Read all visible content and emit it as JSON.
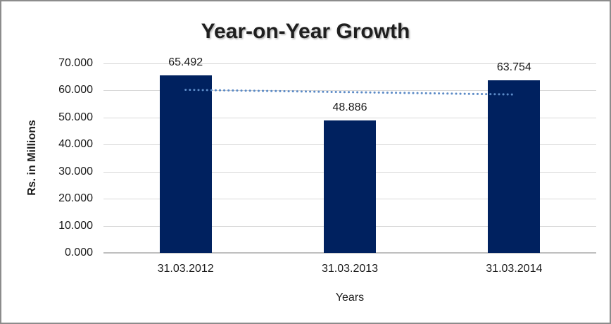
{
  "chart_data": {
    "type": "bar",
    "title": "Year-on-Year Growth",
    "xlabel": "Years",
    "ylabel": "Rs. in Millions",
    "categories": [
      "31.03.2012",
      "31.03.2013",
      "31.03.2014"
    ],
    "values": [
      65.492,
      48.886,
      63.754
    ],
    "value_labels": [
      "65.492",
      "48.886",
      "63.754"
    ],
    "ylim": [
      0,
      70
    ],
    "ytick_labels": [
      "0.000",
      "10.000",
      "20.000",
      "30.000",
      "40.000",
      "50.000",
      "60.000",
      "70.000"
    ],
    "grid": true,
    "legend": "none",
    "bar_color": "#00215f",
    "gridline_color": "#d9d9d9",
    "trendline": {
      "type": "linear",
      "style": "dotted",
      "color": "#5b8ac6",
      "start_value": 60.25,
      "end_value": 58.51
    }
  }
}
